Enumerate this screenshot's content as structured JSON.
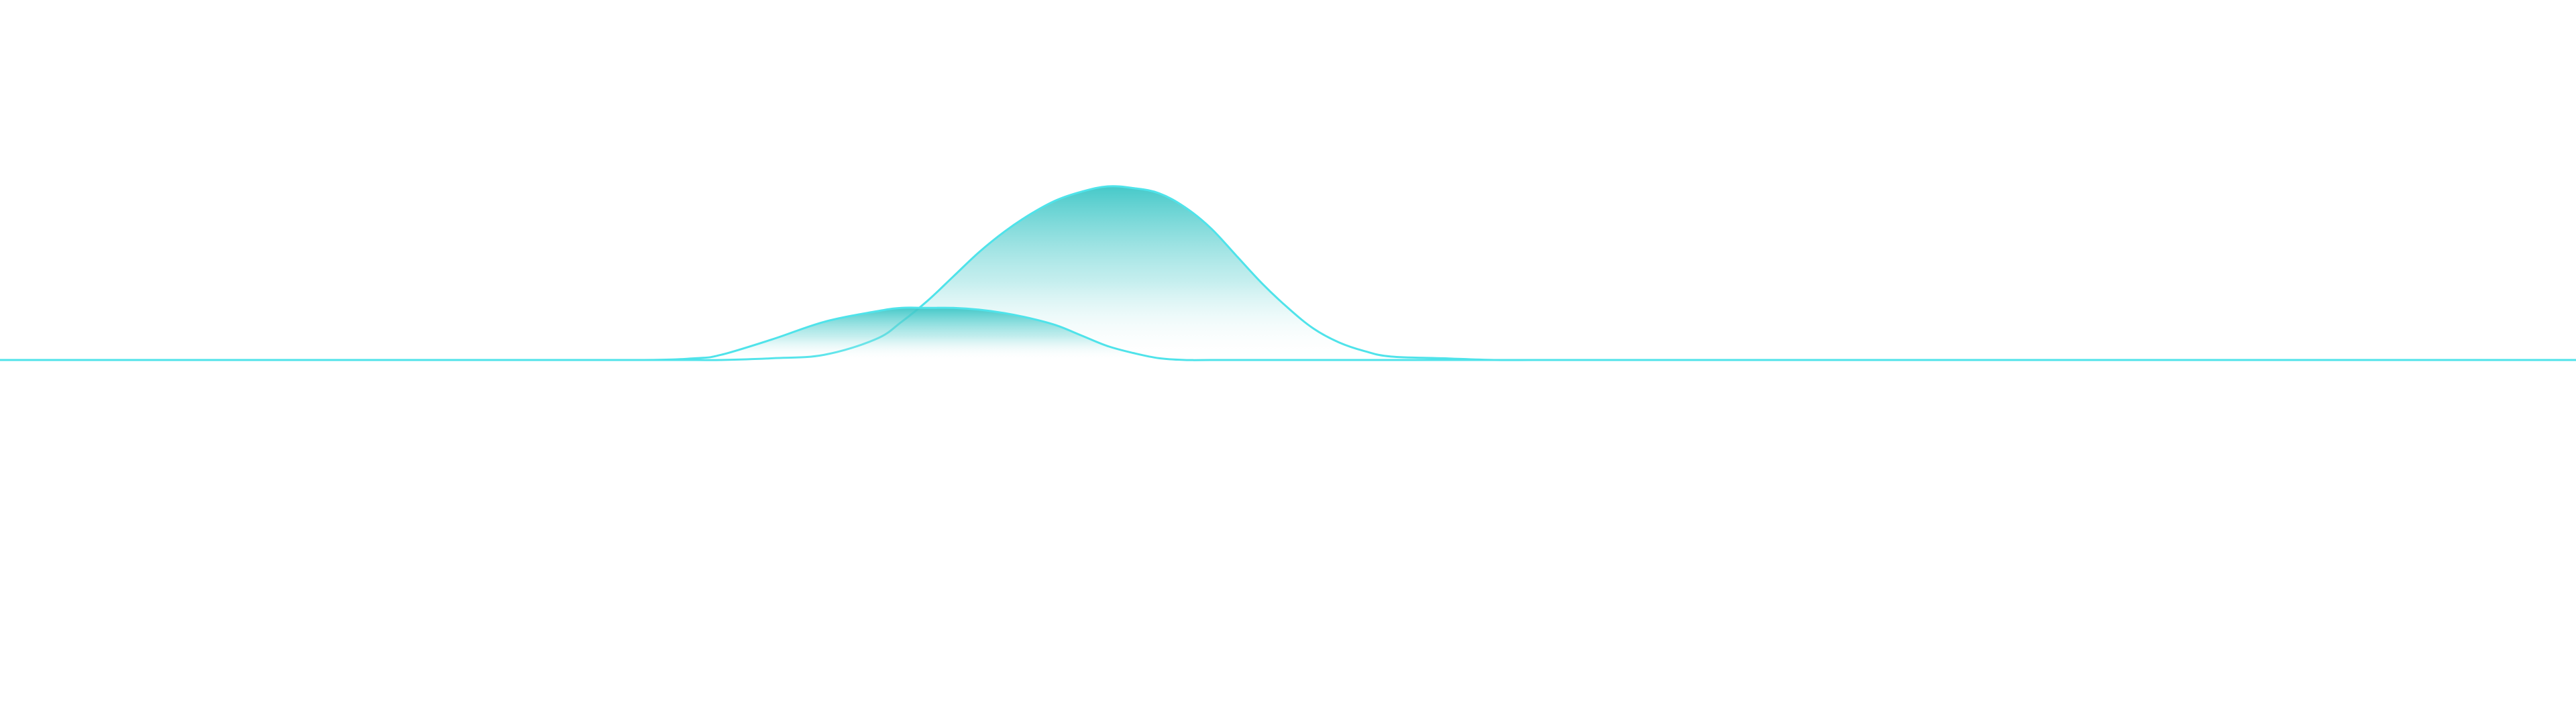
{
  "chart_data": {
    "type": "area",
    "title": "",
    "xlabel": "",
    "ylabel": "",
    "xlim": [
      0,
      100
    ],
    "ylim": [
      0,
      1
    ],
    "grid": false,
    "legend": "none",
    "colors": {
      "line": "#4fe3ea",
      "fill_top": "#3cc6c6"
    },
    "x": [
      0,
      5,
      10,
      15,
      20,
      25,
      27,
      28,
      30,
      32,
      34,
      35,
      36,
      37,
      38,
      39,
      40,
      41,
      42,
      43,
      44,
      45,
      46,
      47,
      48,
      49,
      50,
      51,
      52,
      53,
      54,
      56,
      58,
      60,
      65,
      70,
      75,
      80,
      85,
      90,
      95,
      100
    ],
    "series": [
      {
        "values": [
          0,
          0,
          0,
          0,
          0,
          0,
          0,
          0,
          0.01,
          0.03,
          0.12,
          0.22,
          0.34,
          0.48,
          0.62,
          0.74,
          0.84,
          0.92,
          0.97,
          1.0,
          0.99,
          0.96,
          0.88,
          0.76,
          0.6,
          0.44,
          0.3,
          0.18,
          0.1,
          0.05,
          0.02,
          0.01,
          0,
          0,
          0,
          0,
          0,
          0,
          0,
          0,
          0,
          0
        ]
      },
      {
        "values": [
          0,
          0,
          0,
          0,
          0,
          0,
          0.01,
          0.03,
          0.12,
          0.22,
          0.28,
          0.3,
          0.3,
          0.3,
          0.29,
          0.27,
          0.24,
          0.2,
          0.14,
          0.08,
          0.04,
          0.01,
          0,
          0,
          0,
          0,
          0,
          0,
          0,
          0,
          0,
          0,
          0,
          0,
          0,
          0,
          0,
          0,
          0,
          0,
          0,
          0
        ]
      }
    ]
  }
}
